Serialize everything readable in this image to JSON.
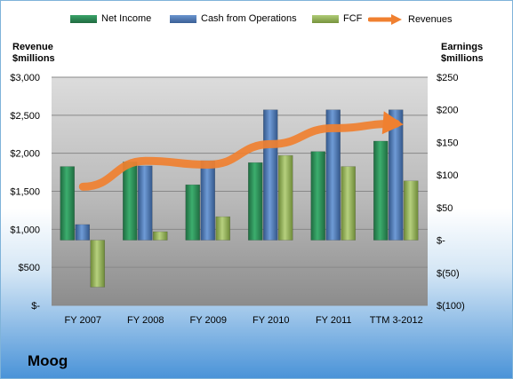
{
  "company": "Moog",
  "chart_data": {
    "type": "bar",
    "categories": [
      "FY 2007",
      "FY 2008",
      "FY 2009",
      "FY 2010",
      "FY 2011",
      "TTM 3-2012"
    ],
    "series": [
      {
        "name": "Net Income",
        "axis": "right",
        "kind": "bar",
        "color": "#2e8b57",
        "values": [
          113,
          120,
          85,
          119,
          136,
          152
        ]
      },
      {
        "name": "Cash from Operations",
        "axis": "right",
        "kind": "bar",
        "color": "#4f81bd",
        "values": [
          24,
          114,
          122,
          200,
          200,
          200
        ]
      },
      {
        "name": "FCF",
        "axis": "right",
        "kind": "bar",
        "color": "#9bbb59",
        "values": [
          -72,
          13,
          36,
          130,
          113,
          91
        ]
      },
      {
        "name": "Revenues",
        "axis": "left",
        "kind": "line",
        "color": "#f08030",
        "values": [
          1560,
          1900,
          1850,
          2120,
          2330,
          2390
        ]
      }
    ],
    "left_axis": {
      "title_line1": "Revenue",
      "title_line2": "$millions",
      "min": 0,
      "max": 3000,
      "ticks": [
        0,
        500,
        1000,
        1500,
        2000,
        2500,
        3000
      ],
      "tick_labels": [
        "$-",
        "$500",
        "$1,000",
        "$1,500",
        "$2,000",
        "$2,500",
        "$3,000"
      ]
    },
    "right_axis": {
      "title_line1": "Earnings",
      "title_line2": "$millions",
      "min": -100,
      "max": 250,
      "ticks": [
        -100,
        -50,
        0,
        50,
        100,
        150,
        200,
        250
      ],
      "tick_labels": [
        "$(100)",
        "$(50)",
        "$-",
        "$50",
        "$100",
        "$150",
        "$200",
        "$250"
      ]
    },
    "grid": true,
    "legend_position": "top"
  }
}
